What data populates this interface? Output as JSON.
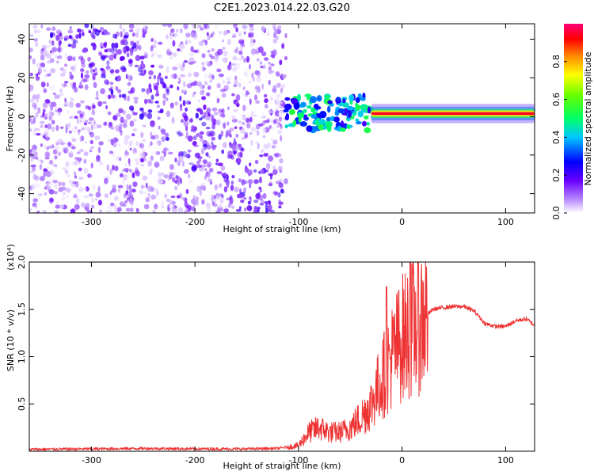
{
  "title": "C2E1.2023.014.22.03.G20",
  "colors": {
    "snr_line": "#ee3333",
    "axis": "#000000",
    "background": "#ffffff"
  },
  "chart_data": [
    {
      "type": "heatmap",
      "xlabel": "Height of straight line (km)",
      "ylabel": "Frequency (Hz)",
      "xlim": [
        -360,
        128
      ],
      "ylim": [
        -50,
        48
      ],
      "x_ticks": [
        -300,
        -200,
        -100,
        0,
        100
      ],
      "x_tick_labels": [
        "-300",
        "-200",
        "-100",
        "0",
        "100"
      ],
      "y_ticks": [
        -40,
        -20,
        0,
        20,
        40
      ],
      "y_tick_labels": [
        "-40",
        "-20",
        "0",
        "20",
        "40"
      ],
      "colorbar": {
        "label": "Normalized spectral amplitude",
        "range": [
          0,
          1
        ],
        "ticks": [
          0.0,
          0.2,
          0.4,
          0.6,
          0.8
        ],
        "tick_labels": [
          "0.0",
          "0.2",
          "0.4",
          "0.6",
          "0.8"
        ],
        "colormap": "white-violet-blue-cyan-green-yellow-red-magenta"
      },
      "regions": [
        {
          "x_range": [
            -360,
            -112
          ],
          "freq_range": [
            -50,
            48
          ],
          "amplitude": 0.1,
          "note": "broadband scatter, descending diagonal streak"
        },
        {
          "x_range": [
            -112,
            -30
          ],
          "freq_range": [
            -12,
            12
          ],
          "amplitude": 0.35
        },
        {
          "x_range": [
            -30,
            128
          ],
          "freq_range": [
            0,
            3
          ],
          "amplitude": 0.9
        }
      ],
      "grid": false
    },
    {
      "type": "line",
      "xlabel": "Height of straight line (km)",
      "ylabel": "SNR (10 * v/v)",
      "y_multiplier": "(x10⁴)",
      "xlim": [
        -360,
        128
      ],
      "ylim": [
        0,
        20000
      ],
      "x_ticks": [
        -300,
        -200,
        -100,
        0,
        100
      ],
      "x_tick_labels": [
        "-300",
        "-200",
        "-100",
        "0",
        "100"
      ],
      "y_ticks": [
        5000,
        10000,
        15000,
        20000
      ],
      "y_tick_labels": [
        "0.5",
        "1.0",
        "1.5",
        "2.0"
      ],
      "series": [
        {
          "color": "#ee3333",
          "x": [
            -360,
            -300,
            -250,
            -200,
            -150,
            -120,
            -100,
            -90,
            -80,
            -70,
            -60,
            -50,
            -40,
            -30,
            -20,
            -10,
            0,
            10,
            20,
            30,
            40,
            50,
            60,
            70,
            80,
            90,
            100,
            110,
            120,
            128
          ],
          "y": [
            200,
            250,
            300,
            250,
            250,
            300,
            600,
            2000,
            2500,
            2000,
            2000,
            2500,
            3500,
            5000,
            7500,
            10000,
            12000,
            13000,
            14000,
            15000,
            15200,
            15300,
            15300,
            14800,
            13500,
            13200,
            13200,
            13800,
            14000,
            13300
          ]
        }
      ],
      "grid": false
    }
  ]
}
